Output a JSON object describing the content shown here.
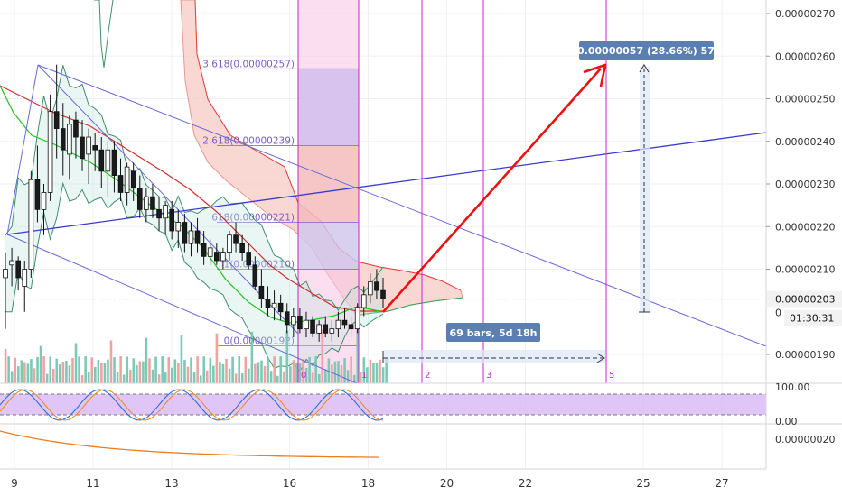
{
  "colors": {
    "up_candle": "#ffffff",
    "down_candle": "#1b1b1b",
    "channel": "#6a6ad9",
    "bollinger": "#3f8f6a",
    "ma_red": "#d03030",
    "ma_green": "#22c422",
    "ichimoku_cloud": "#f7c8c0",
    "fib_magenta": "#cc22cc",
    "arrow": "#ee1111",
    "label_bg": "#5a7fb0",
    "stoch_band": "#d8b8f4",
    "macd_orange": "#ee7d1c",
    "vol_green": "#7cc9b6",
    "vol_red": "#f0a3a3"
  },
  "chart_data": {
    "type": "candlestick",
    "price_axis": {
      "ticks": [
        "0.00000270",
        "0.00000260",
        "0.00000250",
        "0.00000240",
        "0.00000230",
        "0.00000220",
        "0.00000210",
        "0.00000190"
      ],
      "tick_values": [
        270,
        260,
        250,
        240,
        230,
        220,
        210,
        190
      ],
      "current_price": "0.00000203",
      "countdown": "01:30:31",
      "range": [
        188,
        276
      ]
    },
    "date_axis": {
      "labels": [
        "9",
        "11",
        "13",
        "16",
        "18",
        "20",
        "22",
        "25",
        "27"
      ],
      "positions_in_days": [
        9,
        11,
        13,
        16,
        18,
        20,
        22,
        25,
        27
      ]
    },
    "fibonacci": [
      {
        "label": "3.618(0.00000257)",
        "value": 257
      },
      {
        "label": "2.618(0.00000239)",
        "value": 239
      },
      {
        "label": "618(0.00000221)",
        "value": 221
      },
      {
        "label": "1(0.00000210)",
        "value": 210
      },
      {
        "label": "0(0.00000192)",
        "value": 192
      }
    ],
    "time_fib_labels": [
      "0",
      "1",
      "2",
      "3",
      "5"
    ],
    "measurement": {
      "label": "0.00000057 (28.66%) 57",
      "bars_label": "69 bars, 5d 18h"
    },
    "stoch_rsi": {
      "ticks": [
        "100.00",
        "0.00"
      ]
    },
    "macd": {
      "ticks": [
        "0.00000020"
      ]
    },
    "candles": [
      [
        208,
        214,
        196,
        210
      ],
      [
        211,
        215,
        206,
        212
      ],
      [
        212,
        213,
        205,
        208
      ],
      [
        206,
        212,
        200,
        210
      ],
      [
        210,
        233,
        208,
        231
      ],
      [
        231,
        239,
        221,
        224
      ],
      [
        224,
        230,
        218,
        228
      ],
      [
        228,
        251,
        226,
        247
      ],
      [
        247,
        258,
        236,
        243
      ],
      [
        243,
        249,
        232,
        238
      ],
      [
        237,
        246,
        231,
        244
      ],
      [
        245,
        247,
        236,
        241
      ],
      [
        241,
        245,
        233,
        236
      ],
      [
        237,
        243,
        230,
        241
      ],
      [
        239,
        242,
        233,
        238
      ],
      [
        238,
        241,
        229,
        233
      ],
      [
        233,
        240,
        227,
        238
      ],
      [
        238,
        240,
        228,
        232
      ],
      [
        232,
        236,
        226,
        228
      ],
      [
        228,
        235,
        225,
        234
      ],
      [
        233,
        235,
        226,
        229
      ],
      [
        229,
        232,
        222,
        224
      ],
      [
        224,
        229,
        221,
        227
      ],
      [
        227,
        230,
        222,
        224
      ],
      [
        224,
        227,
        219,
        222
      ],
      [
        222,
        226,
        218,
        225
      ],
      [
        224,
        226,
        217,
        219
      ],
      [
        219,
        224,
        215,
        221
      ],
      [
        221,
        223,
        214,
        216
      ],
      [
        216,
        221,
        213,
        219
      ],
      [
        219,
        222,
        214,
        216
      ],
      [
        216,
        219,
        211,
        213
      ],
      [
        213,
        217,
        211,
        215
      ],
      [
        214,
        216,
        211,
        212
      ],
      [
        212,
        215,
        210,
        214
      ],
      [
        214,
        219,
        212,
        218
      ],
      [
        218,
        221,
        214,
        216
      ],
      [
        216,
        218,
        212,
        214
      ],
      [
        214,
        216,
        210,
        211
      ],
      [
        211,
        213,
        205,
        206
      ],
      [
        206,
        210,
        201,
        203
      ],
      [
        203,
        206,
        199,
        201
      ],
      [
        201,
        205,
        198,
        202
      ],
      [
        202,
        204,
        198,
        200
      ],
      [
        200,
        202,
        195,
        197
      ],
      [
        197,
        201,
        194,
        199
      ],
      [
        199,
        201,
        195,
        196
      ],
      [
        196,
        200,
        194,
        198
      ],
      [
        198,
        199,
        194,
        195
      ],
      [
        195,
        198,
        193,
        197
      ],
      [
        197,
        199,
        194,
        195
      ],
      [
        195,
        198,
        193,
        196
      ],
      [
        196,
        200,
        194,
        198
      ],
      [
        198,
        201,
        196,
        197
      ],
      [
        197,
        199,
        194,
        196
      ],
      [
        196,
        202,
        195,
        201
      ],
      [
        201,
        206,
        199,
        204
      ],
      [
        204,
        209,
        202,
        207
      ],
      [
        207,
        210,
        203,
        205
      ],
      [
        205,
        208,
        201,
        203
      ]
    ]
  }
}
